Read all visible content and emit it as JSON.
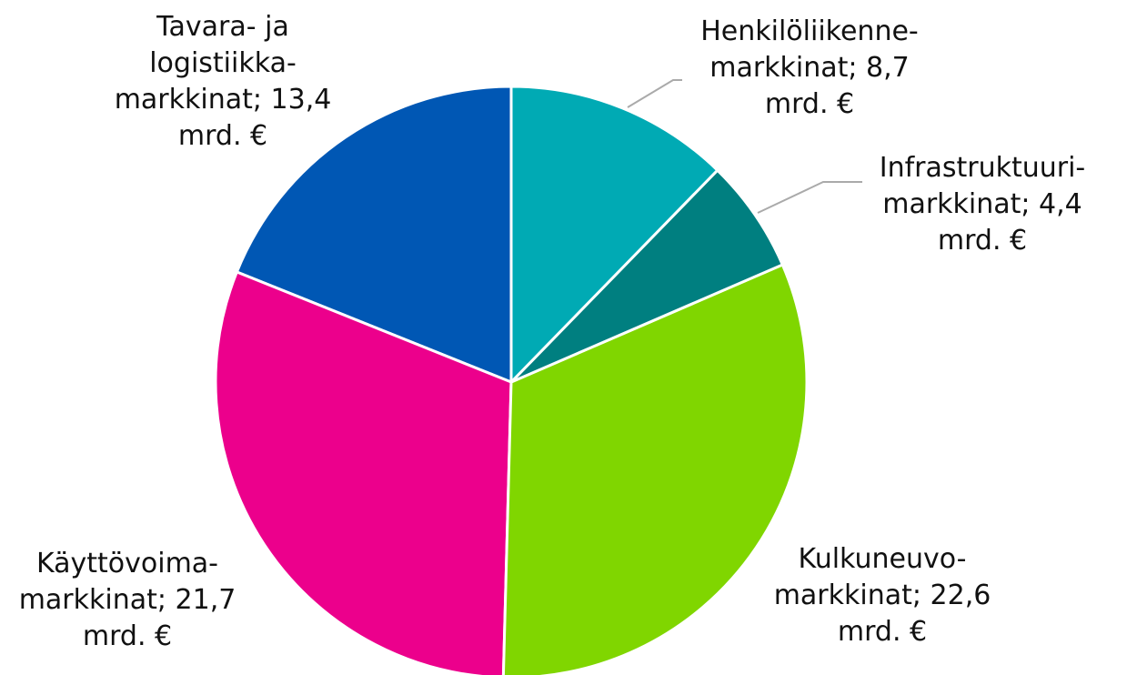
{
  "chart_data": {
    "type": "pie",
    "values": [
      8.7,
      4.4,
      22.6,
      21.7,
      13.4
    ],
    "value_labels": [
      "Henkilöliikenne-markkinat; 8,7 mrd. €",
      "Infrastruktuuri-markkinat; 4,4 mrd. €",
      "Kulkuneuvo-markkinat; 22,6 mrd. €",
      "Käyttövoima-markkinat; 21,7 mrd. €",
      "Tavara- ja logistiikka-markkinat; 13,4 mrd. €"
    ],
    "colors": [
      "#00aab4",
      "#007f80",
      "#80d600",
      "#ec008c",
      "#0057b4"
    ]
  }
}
